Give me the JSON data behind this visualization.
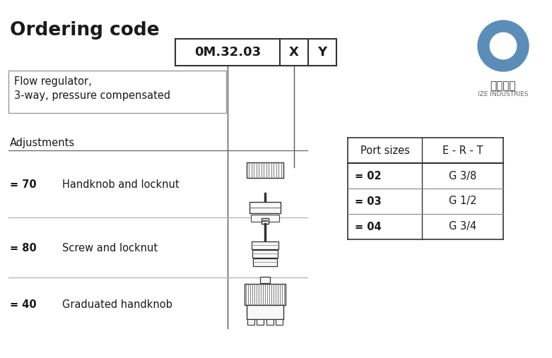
{
  "title": "Ordering code",
  "bg_color": "#ffffff",
  "text_color": "#1a1a1a",
  "code_box": {
    "label": "0M.32.03",
    "x_label": "X",
    "y_label": "Y"
  },
  "description": [
    "Flow regulator,",
    "3-way, pressure compensated"
  ],
  "adjustments_header": "Adjustments",
  "adjustments": [
    {
      "code": "= 70",
      "desc": "Handknob and locknut"
    },
    {
      "code": "= 80",
      "desc": "Screw and locknut"
    },
    {
      "code": "= 40",
      "desc": "Graduated handknob"
    }
  ],
  "port_sizes_header": "Port sizes",
  "ert_header": "E - R - T",
  "port_sizes": [
    {
      "code": "= 02",
      "size": "G 3/8"
    },
    {
      "code": "= 03",
      "size": "G 1/2"
    },
    {
      "code": "= 04",
      "size": "G 3/4"
    }
  ],
  "logo_color": "#5b8db8",
  "logo_text_cn": "爱泽工业",
  "logo_text_en": "IZE INDUSTRIES"
}
